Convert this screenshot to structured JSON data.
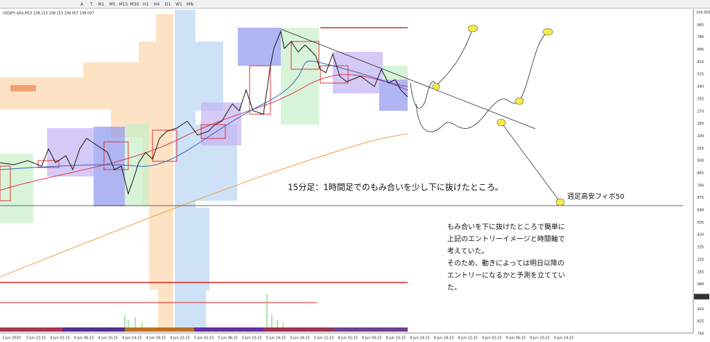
{
  "toolbar": {
    "buttons": [
      "A",
      "T",
      "M1",
      "M5",
      "M15",
      "M30",
      "H1",
      "H4",
      "D1",
      "W1",
      "MN"
    ]
  },
  "chart": {
    "header": "USDJPY,oj5k,M15  108.153 108.153 108.007 108.007",
    "price_labels": [
      "109.950",
      ".845",
      ".780",
      ".695",
      ".610",
      ".525",
      ".440",
      ".355",
      ".270",
      ".185",
      ".100",
      ".015",
      ".930",
      ".845",
      ".760",
      ".675",
      ".590",
      ".505",
      ".420",
      ".335",
      ".250",
      ".165",
      ".080",
      ".007",
      ".910",
      ".825",
      ".740"
    ],
    "time_labels": [
      "3 Jun 2020",
      "3 Jun 22:15",
      "4 Jun 02:15",
      "4 Jun 06:15",
      "4 Jun 10:15",
      "4 Jun 14:15",
      "4 Jun 18:15",
      "4 Jun 22:15",
      "5 Jun 02:15",
      "5 Jun 06:15",
      "5 Jun 10:15",
      "5 Jun 14:15",
      "5 Jun 18:15",
      "5 Jun 22:15",
      "8 Jun 02:15",
      "8 Jun 06:15",
      "8 Jun 10:15",
      "8 Jun 14:15",
      "8 Jun 18:15",
      "8 Jun 22:15",
      "9 Jun 02:15",
      "9 Jun 06:15",
      "9 Jun 10:15",
      "9 Jun 14:15"
    ]
  },
  "annotations": {
    "main": "15分足：1時間足でのもみ合いを少し下に抜けたところ。",
    "fibo": "週足高安フィボ50",
    "memo": [
      "もみ合いを下に抜けたところで簡単に",
      "上記のエントリーイメージと時間軸で",
      "考えていた。",
      "そのため、動きによっては明日以降の",
      "エントリーになるかと予測を立ててい",
      "た。"
    ]
  }
}
